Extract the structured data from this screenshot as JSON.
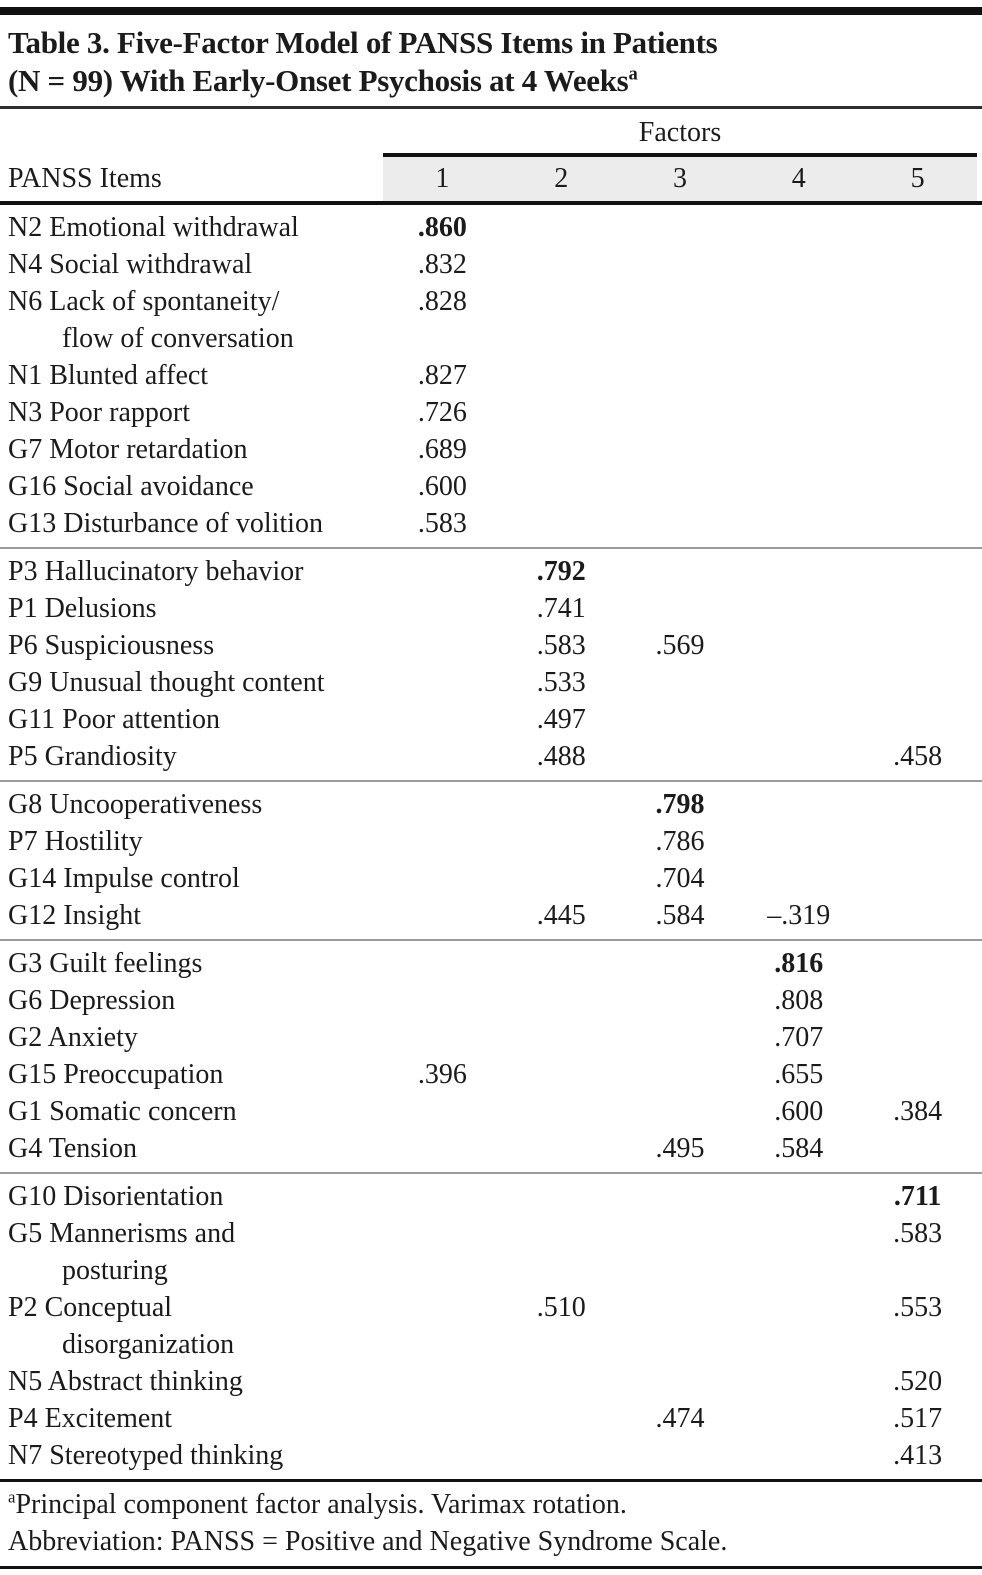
{
  "page": {
    "title_lines": [
      "Table 3. Five-Factor Model of PANSS Items in Patients",
      "(N = 99) With Early-Onset Psychosis at 4 Weeks"
    ],
    "title_superscript": "a"
  },
  "table": {
    "items_header": "PANSS Items",
    "factors_header": "Factors",
    "factor_columns": [
      "1",
      "2",
      "3",
      "4",
      "5"
    ],
    "sections": [
      {
        "rows": [
          {
            "label": "N2 Emotional withdrawal",
            "cont": "",
            "values": [
              ".860",
              "",
              "",
              "",
              ""
            ],
            "bold_col": 0
          },
          {
            "label": "N4 Social withdrawal",
            "cont": "",
            "values": [
              ".832",
              "",
              "",
              "",
              ""
            ],
            "bold_col": -1
          },
          {
            "label": "N6 Lack of spontaneity/",
            "cont": "flow of conversation",
            "values": [
              ".828",
              "",
              "",
              "",
              ""
            ],
            "bold_col": -1
          },
          {
            "label": "N1 Blunted affect",
            "cont": "",
            "values": [
              ".827",
              "",
              "",
              "",
              ""
            ],
            "bold_col": -1
          },
          {
            "label": "N3 Poor rapport",
            "cont": "",
            "values": [
              ".726",
              "",
              "",
              "",
              ""
            ],
            "bold_col": -1
          },
          {
            "label": "G7 Motor retardation",
            "cont": "",
            "values": [
              ".689",
              "",
              "",
              "",
              ""
            ],
            "bold_col": -1
          },
          {
            "label": "G16 Social avoidance",
            "cont": "",
            "values": [
              ".600",
              "",
              "",
              "",
              ""
            ],
            "bold_col": -1
          },
          {
            "label": "G13 Disturbance of volition",
            "cont": "",
            "values": [
              ".583",
              "",
              "",
              "",
              ""
            ],
            "bold_col": -1
          }
        ]
      },
      {
        "rows": [
          {
            "label": "P3 Hallucinatory behavior",
            "cont": "",
            "values": [
              "",
              ".792",
              "",
              "",
              ""
            ],
            "bold_col": 1
          },
          {
            "label": "P1 Delusions",
            "cont": "",
            "values": [
              "",
              ".741",
              "",
              "",
              ""
            ],
            "bold_col": -1
          },
          {
            "label": "P6 Suspiciousness",
            "cont": "",
            "values": [
              "",
              ".583",
              ".569",
              "",
              ""
            ],
            "bold_col": -1
          },
          {
            "label": "G9 Unusual thought content",
            "cont": "",
            "values": [
              "",
              ".533",
              "",
              "",
              ""
            ],
            "bold_col": -1
          },
          {
            "label": "G11 Poor attention",
            "cont": "",
            "values": [
              "",
              ".497",
              "",
              "",
              ""
            ],
            "bold_col": -1
          },
          {
            "label": "P5 Grandiosity",
            "cont": "",
            "values": [
              "",
              ".488",
              "",
              "",
              ".458"
            ],
            "bold_col": -1
          }
        ]
      },
      {
        "rows": [
          {
            "label": "G8 Uncooperativeness",
            "cont": "",
            "values": [
              "",
              "",
              ".798",
              "",
              ""
            ],
            "bold_col": 2
          },
          {
            "label": "P7 Hostility",
            "cont": "",
            "values": [
              "",
              "",
              ".786",
              "",
              ""
            ],
            "bold_col": -1
          },
          {
            "label": "G14 Impulse control",
            "cont": "",
            "values": [
              "",
              "",
              ".704",
              "",
              ""
            ],
            "bold_col": -1
          },
          {
            "label": "G12 Insight",
            "cont": "",
            "values": [
              "",
              ".445",
              ".584",
              "–.319",
              ""
            ],
            "bold_col": -1
          }
        ]
      },
      {
        "rows": [
          {
            "label": "G3 Guilt feelings",
            "cont": "",
            "values": [
              "",
              "",
              "",
              ".816",
              ""
            ],
            "bold_col": 3
          },
          {
            "label": "G6 Depression",
            "cont": "",
            "values": [
              "",
              "",
              "",
              ".808",
              ""
            ],
            "bold_col": -1
          },
          {
            "label": "G2 Anxiety",
            "cont": "",
            "values": [
              "",
              "",
              "",
              ".707",
              ""
            ],
            "bold_col": -1
          },
          {
            "label": "G15 Preoccupation",
            "cont": "",
            "values": [
              ".396",
              "",
              "",
              ".655",
              ""
            ],
            "bold_col": -1
          },
          {
            "label": "G1 Somatic concern",
            "cont": "",
            "values": [
              "",
              "",
              "",
              ".600",
              ".384"
            ],
            "bold_col": -1
          },
          {
            "label": "G4 Tension",
            "cont": "",
            "values": [
              "",
              "",
              ".495",
              ".584",
              ""
            ],
            "bold_col": -1
          }
        ]
      },
      {
        "rows": [
          {
            "label": "G10 Disorientation",
            "cont": "",
            "values": [
              "",
              "",
              "",
              "",
              ".711"
            ],
            "bold_col": 4
          },
          {
            "label": "G5 Mannerisms and",
            "cont": "posturing",
            "values": [
              "",
              "",
              "",
              "",
              ".583"
            ],
            "bold_col": -1
          },
          {
            "label": "P2 Conceptual",
            "cont": "disorganization",
            "values": [
              "",
              ".510",
              "",
              "",
              ".553"
            ],
            "bold_col": -1
          },
          {
            "label": "N5 Abstract thinking",
            "cont": "",
            "values": [
              "",
              "",
              "",
              "",
              ".520"
            ],
            "bold_col": -1
          },
          {
            "label": "P4 Excitement",
            "cont": "",
            "values": [
              "",
              "",
              ".474",
              "",
              ".517"
            ],
            "bold_col": -1
          },
          {
            "label": "N7 Stereotyped thinking",
            "cont": "",
            "values": [
              "",
              "",
              "",
              "",
              ".413"
            ],
            "bold_col": -1
          }
        ]
      }
    ]
  },
  "footnotes": [
    {
      "marker": "a",
      "text": "Principal component factor analysis. Varimax rotation."
    },
    {
      "marker": "",
      "text": "Abbreviation: PANSS = Positive and Negative Syndrome Scale."
    }
  ],
  "colors": {
    "text": "#1b1b1b",
    "rule_dark": "#111111",
    "section_divider": "#9b9b9b",
    "header_band": "#ececec"
  }
}
